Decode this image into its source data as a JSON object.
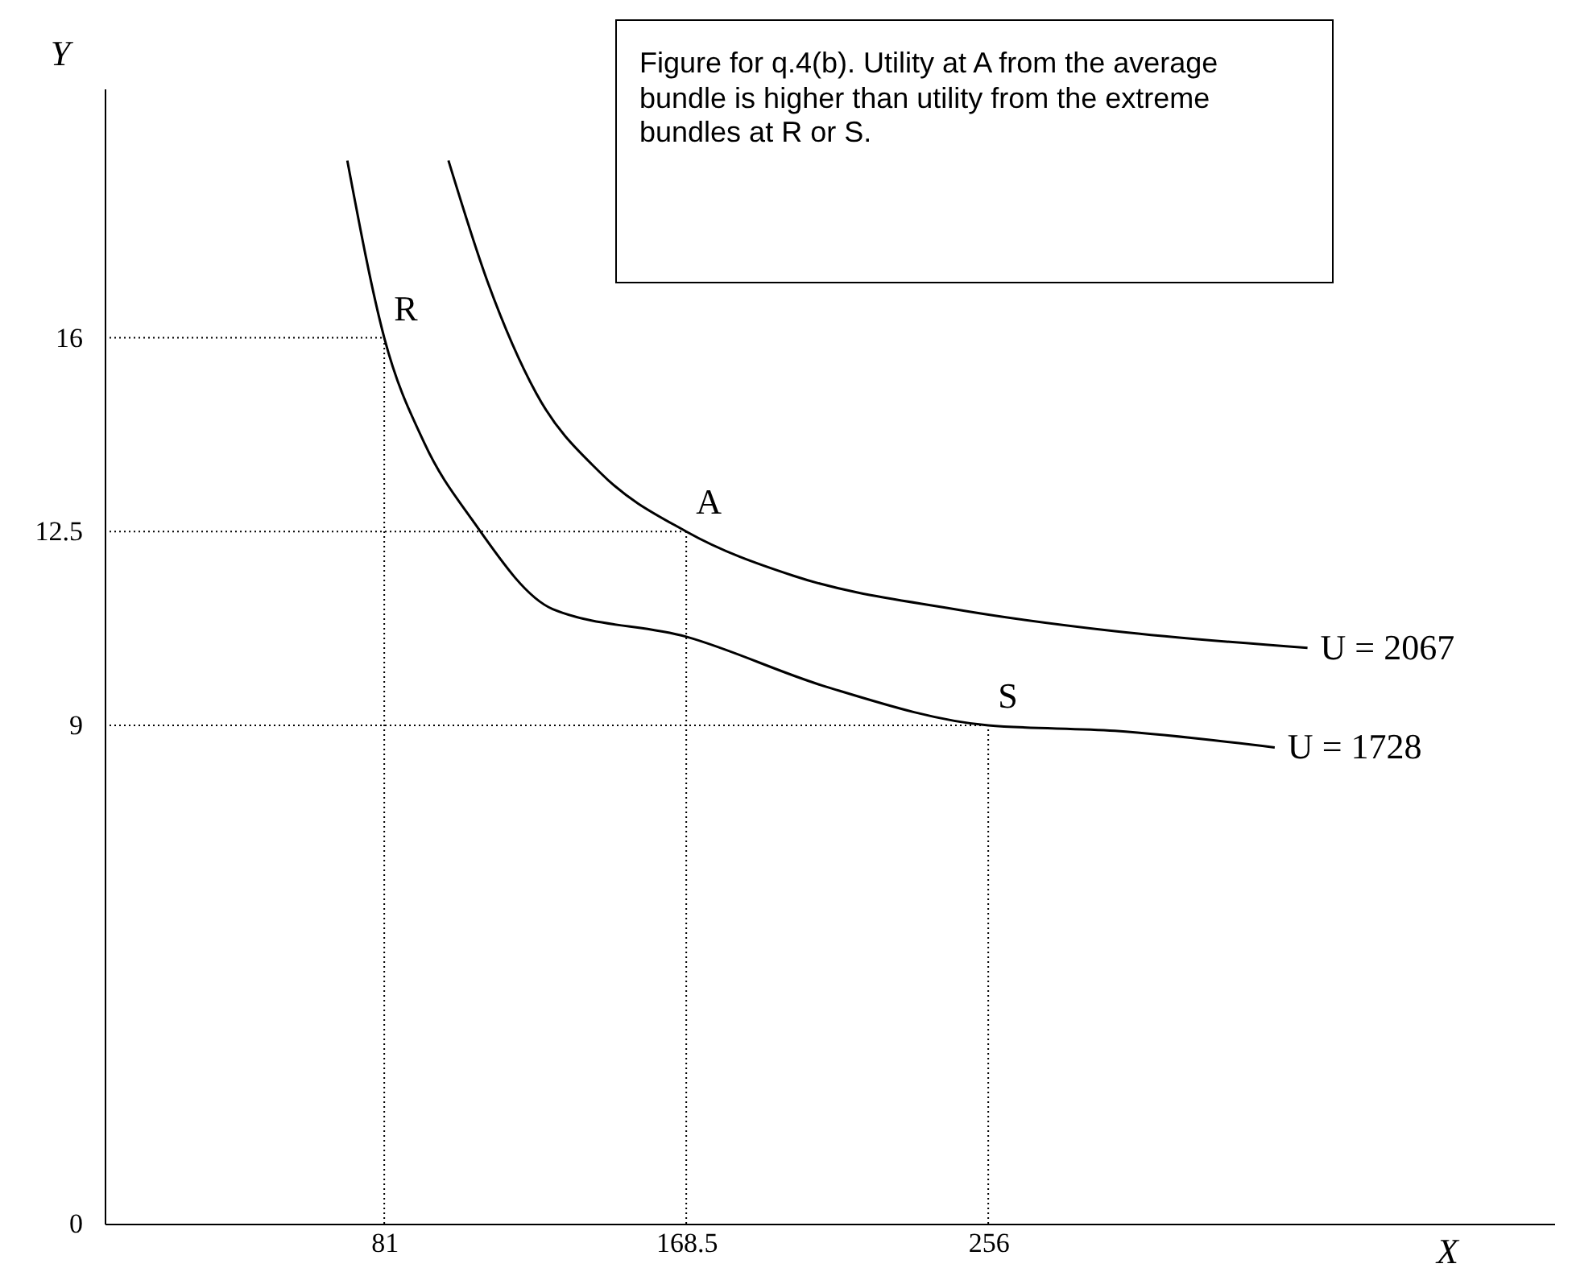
{
  "chart_data": {
    "type": "line",
    "xlabel": "X",
    "ylabel": "Y",
    "xlim": [
      0,
      420
    ],
    "ylim": [
      0,
      20.5
    ],
    "xticks": [
      81,
      168.5,
      256
    ],
    "yticks": [
      0,
      9,
      12.5,
      16
    ],
    "series": [
      {
        "name": "U = 2067",
        "color": "#000000",
        "x": [
          99.6,
          111,
          125,
          143.8,
          168.5,
          199.6,
          246,
          292.7,
          348.5
        ],
        "values": [
          19.2,
          17,
          15,
          13.55,
          12.5,
          11.7,
          11.1,
          10.7,
          10.4
        ]
      },
      {
        "name": "U = 1728",
        "color": "#000000",
        "x": [
          70.3,
          81,
          92.6,
          106.6,
          129.8,
          168.5,
          208.9,
          256,
          292.7,
          339
        ],
        "values": [
          19.2,
          16,
          14.1,
          12.7,
          11.1,
          10.6,
          9.7,
          9,
          8.9,
          8.6
        ]
      }
    ],
    "ref_lines": [
      {
        "axis": "x",
        "value": 81,
        "line_style": "dotted"
      },
      {
        "axis": "x",
        "value": 168.5,
        "line_style": "dotted"
      },
      {
        "axis": "x",
        "value": 256,
        "line_style": "dotted"
      },
      {
        "axis": "y",
        "value": 16,
        "line_style": "dotted"
      },
      {
        "axis": "y",
        "value": 12.5,
        "line_style": "dotted"
      },
      {
        "axis": "y",
        "value": 9,
        "line_style": "dotted"
      }
    ],
    "annotations": [
      {
        "text": "R",
        "x": 81,
        "y": 16
      },
      {
        "text": "A",
        "x": 168.5,
        "y": 12.5
      },
      {
        "text": "S",
        "x": 256,
        "y": 9
      },
      "Figure for q.4(b).  Utility at A from the average bundle is higher than utility from the extreme bundles at R or S."
    ],
    "grid": false,
    "legend": false,
    "marker": "none",
    "line_style": "solid"
  }
}
